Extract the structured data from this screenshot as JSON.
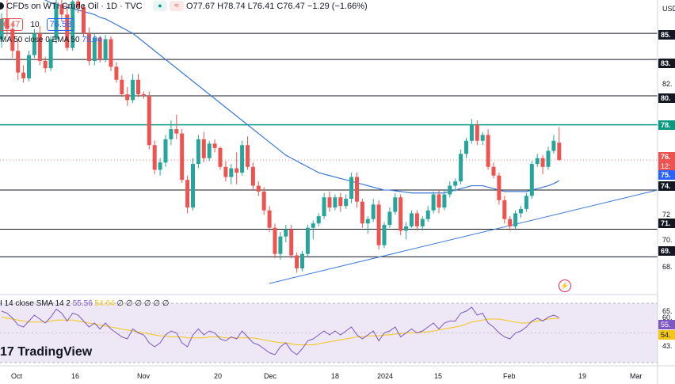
{
  "header": {
    "symbol_title": "CFDs on WTI Crude Oil · 1D · TVC",
    "ohlc": "O77.67 H78.74 L76.41 C76.47 −1.29 (−1.66%)",
    "bid": "6.47",
    "spread": "10",
    "ask": "76.58",
    "ema_label": "MA 50 close 0 EMA 50",
    "ema_value": "75.04",
    "currency": "USD"
  },
  "rsi_panel": {
    "label": "I 14 close SMA 14 2",
    "rsi_value": "55.56",
    "sma_value": "54.64",
    "trailing": "∅ ∅ ∅ ∅ ∅ ∅",
    "axis_labels": [
      "65.",
      "60.",
      "55.",
      "54.",
      "43."
    ]
  },
  "price_axis": {
    "ticks": [
      "85.",
      "83.",
      "82.",
      "80.",
      "78.",
      "76.",
      "75.",
      "74.",
      "72",
      "71.",
      "70.",
      "69.",
      "68."
    ],
    "highlighted": [
      "85.",
      "83.",
      "80.",
      "78.",
      "76.",
      "12:",
      "75.",
      "74.",
      "71.",
      "69."
    ]
  },
  "date_axis": [
    "Oct",
    "16",
    "Nov",
    "20",
    "Dec",
    "18",
    "2024",
    "15",
    "Feb",
    "19",
    "Mar"
  ],
  "logo": "TradingView",
  "colors": {
    "up": "#26a69a",
    "down": "#ef5350",
    "ema": "#3b78d8",
    "rsi": "#7e57c2",
    "rsi_sma": "#f5c518",
    "rsi_bg": "#ede7f6",
    "resistance": "#131722",
    "highlight_line": "#089981"
  },
  "chart_data": {
    "type": "candlestick",
    "title": "CFDs on WTI Crude Oil · 1D · TVC",
    "ylim": [
      67.2,
      87.5
    ],
    "horizontal_levels": [
      85.2,
      83.4,
      80.9,
      78.9,
      74.4,
      71.7,
      69.8
    ],
    "trendline": [
      {
        "x": 0,
        "y": 67.8
      },
      {
        "x": 107,
        "y": 74.8
      }
    ],
    "candles": [
      {
        "o": 84.8,
        "h": 86.6,
        "l": 84.2,
        "c": 86.2
      },
      {
        "o": 86.2,
        "h": 87.5,
        "l": 85.0,
        "c": 85.5
      },
      {
        "o": 85.5,
        "h": 86.0,
        "l": 83.5,
        "c": 84.0
      },
      {
        "o": 84.0,
        "h": 84.8,
        "l": 82.0,
        "c": 82.5
      },
      {
        "o": 82.5,
        "h": 83.0,
        "l": 81.8,
        "c": 82.1
      },
      {
        "o": 82.1,
        "h": 84.0,
        "l": 81.9,
        "c": 83.7
      },
      {
        "o": 83.7,
        "h": 85.5,
        "l": 83.5,
        "c": 85.2
      },
      {
        "o": 85.2,
        "h": 85.7,
        "l": 83.0,
        "c": 83.3
      },
      {
        "o": 83.3,
        "h": 83.6,
        "l": 82.5,
        "c": 82.8
      },
      {
        "o": 82.8,
        "h": 85.0,
        "l": 82.6,
        "c": 84.8
      },
      {
        "o": 84.8,
        "h": 87.5,
        "l": 84.5,
        "c": 87.2
      },
      {
        "o": 87.2,
        "h": 87.5,
        "l": 86.0,
        "c": 86.5
      },
      {
        "o": 86.5,
        "h": 87.2,
        "l": 84.0,
        "c": 84.2
      },
      {
        "o": 84.2,
        "h": 87.6,
        "l": 84.0,
        "c": 87.4
      },
      {
        "o": 87.4,
        "h": 87.6,
        "l": 86.6,
        "c": 87.0
      },
      {
        "o": 87.0,
        "h": 87.2,
        "l": 85.0,
        "c": 85.2
      },
      {
        "o": 85.2,
        "h": 85.6,
        "l": 83.0,
        "c": 83.3
      },
      {
        "o": 83.3,
        "h": 85.2,
        "l": 83.0,
        "c": 84.9
      },
      {
        "o": 84.9,
        "h": 85.0,
        "l": 83.2,
        "c": 83.4
      },
      {
        "o": 83.4,
        "h": 85.1,
        "l": 83.2,
        "c": 84.8
      },
      {
        "o": 84.8,
        "h": 85.0,
        "l": 82.6,
        "c": 82.9
      },
      {
        "o": 82.9,
        "h": 83.2,
        "l": 81.8,
        "c": 82.0
      },
      {
        "o": 82.0,
        "h": 82.3,
        "l": 80.8,
        "c": 81.0
      },
      {
        "o": 81.0,
        "h": 81.5,
        "l": 80.2,
        "c": 80.6
      },
      {
        "o": 80.6,
        "h": 82.4,
        "l": 80.4,
        "c": 82.0
      },
      {
        "o": 82.0,
        "h": 82.4,
        "l": 80.8,
        "c": 81.0
      },
      {
        "o": 81.0,
        "h": 81.2,
        "l": 80.7,
        "c": 80.9
      },
      {
        "o": 80.9,
        "h": 81.2,
        "l": 77.2,
        "c": 77.5
      },
      {
        "o": 77.5,
        "h": 77.8,
        "l": 75.5,
        "c": 75.8
      },
      {
        "o": 75.8,
        "h": 76.6,
        "l": 75.4,
        "c": 76.3
      },
      {
        "o": 76.3,
        "h": 78.2,
        "l": 76.0,
        "c": 77.9
      },
      {
        "o": 77.9,
        "h": 79.2,
        "l": 77.5,
        "c": 78.6
      },
      {
        "o": 78.6,
        "h": 79.6,
        "l": 77.9,
        "c": 78.3
      },
      {
        "o": 78.3,
        "h": 78.6,
        "l": 74.9,
        "c": 75.1
      },
      {
        "o": 75.1,
        "h": 75.4,
        "l": 72.8,
        "c": 73.2
      },
      {
        "o": 73.2,
        "h": 76.6,
        "l": 73.0,
        "c": 76.2
      },
      {
        "o": 76.2,
        "h": 78.2,
        "l": 75.9,
        "c": 77.9
      },
      {
        "o": 77.9,
        "h": 78.4,
        "l": 76.3,
        "c": 76.6
      },
      {
        "o": 76.6,
        "h": 77.8,
        "l": 76.4,
        "c": 77.6
      },
      {
        "o": 77.6,
        "h": 77.9,
        "l": 77.0,
        "c": 77.3
      },
      {
        "o": 77.3,
        "h": 77.4,
        "l": 75.8,
        "c": 76.0
      },
      {
        "o": 76.0,
        "h": 76.4,
        "l": 75.0,
        "c": 75.3
      },
      {
        "o": 75.3,
        "h": 76.2,
        "l": 74.8,
        "c": 75.9
      },
      {
        "o": 75.9,
        "h": 77.0,
        "l": 74.8,
        "c": 75.6
      },
      {
        "o": 75.6,
        "h": 77.8,
        "l": 75.4,
        "c": 77.5
      },
      {
        "o": 77.5,
        "h": 78.1,
        "l": 75.8,
        "c": 76.0
      },
      {
        "o": 76.0,
        "h": 76.3,
        "l": 74.4,
        "c": 74.7
      },
      {
        "o": 74.7,
        "h": 75.0,
        "l": 74.0,
        "c": 74.3
      },
      {
        "o": 74.3,
        "h": 74.6,
        "l": 72.7,
        "c": 73.0
      },
      {
        "o": 73.0,
        "h": 73.3,
        "l": 71.5,
        "c": 71.8
      },
      {
        "o": 71.8,
        "h": 72.1,
        "l": 69.7,
        "c": 70.0
      },
      {
        "o": 70.0,
        "h": 71.5,
        "l": 69.6,
        "c": 71.2
      },
      {
        "o": 71.2,
        "h": 72.0,
        "l": 70.8,
        "c": 71.7
      },
      {
        "o": 71.7,
        "h": 72.0,
        "l": 69.7,
        "c": 69.9
      },
      {
        "o": 69.9,
        "h": 70.1,
        "l": 68.7,
        "c": 69.0
      },
      {
        "o": 69.0,
        "h": 70.2,
        "l": 68.8,
        "c": 70.0
      },
      {
        "o": 70.0,
        "h": 72.0,
        "l": 69.8,
        "c": 71.8
      },
      {
        "o": 71.8,
        "h": 72.3,
        "l": 71.0,
        "c": 72.1
      },
      {
        "o": 72.1,
        "h": 72.8,
        "l": 71.9,
        "c": 72.6
      },
      {
        "o": 72.6,
        "h": 74.2,
        "l": 72.4,
        "c": 73.9
      },
      {
        "o": 73.9,
        "h": 74.3,
        "l": 72.9,
        "c": 73.2
      },
      {
        "o": 73.2,
        "h": 74.1,
        "l": 73.0,
        "c": 73.9
      },
      {
        "o": 73.9,
        "h": 74.2,
        "l": 72.9,
        "c": 73.3
      },
      {
        "o": 73.3,
        "h": 74.1,
        "l": 73.1,
        "c": 73.8
      },
      {
        "o": 73.8,
        "h": 75.6,
        "l": 73.5,
        "c": 75.3
      },
      {
        "o": 75.3,
        "h": 75.6,
        "l": 73.2,
        "c": 73.6
      },
      {
        "o": 73.6,
        "h": 73.8,
        "l": 71.8,
        "c": 72.1
      },
      {
        "o": 72.1,
        "h": 72.6,
        "l": 71.4,
        "c": 72.4
      },
      {
        "o": 72.4,
        "h": 73.8,
        "l": 72.2,
        "c": 73.4
      },
      {
        "o": 73.4,
        "h": 73.7,
        "l": 70.3,
        "c": 70.6
      },
      {
        "o": 70.6,
        "h": 72.2,
        "l": 70.4,
        "c": 72.0
      },
      {
        "o": 72.0,
        "h": 73.2,
        "l": 71.8,
        "c": 72.9
      },
      {
        "o": 72.9,
        "h": 74.2,
        "l": 72.7,
        "c": 73.9
      },
      {
        "o": 73.9,
        "h": 74.1,
        "l": 71.3,
        "c": 71.6
      },
      {
        "o": 71.6,
        "h": 72.2,
        "l": 71.0,
        "c": 71.9
      },
      {
        "o": 71.9,
        "h": 73.0,
        "l": 71.8,
        "c": 72.8
      },
      {
        "o": 72.8,
        "h": 73.0,
        "l": 71.6,
        "c": 71.9
      },
      {
        "o": 71.9,
        "h": 72.6,
        "l": 71.6,
        "c": 72.4
      },
      {
        "o": 72.4,
        "h": 73.3,
        "l": 72.2,
        "c": 73.0
      },
      {
        "o": 73.0,
        "h": 74.3,
        "l": 72.8,
        "c": 74.1
      },
      {
        "o": 74.1,
        "h": 74.4,
        "l": 72.8,
        "c": 73.2
      },
      {
        "o": 73.2,
        "h": 74.4,
        "l": 73.0,
        "c": 74.1
      },
      {
        "o": 74.1,
        "h": 75.0,
        "l": 73.9,
        "c": 74.7
      },
      {
        "o": 74.7,
        "h": 75.2,
        "l": 74.3,
        "c": 75.0
      },
      {
        "o": 75.0,
        "h": 77.2,
        "l": 74.8,
        "c": 76.9
      },
      {
        "o": 76.9,
        "h": 78.0,
        "l": 76.6,
        "c": 77.8
      },
      {
        "o": 77.8,
        "h": 79.3,
        "l": 77.6,
        "c": 78.9
      },
      {
        "o": 78.9,
        "h": 79.2,
        "l": 77.5,
        "c": 77.8
      },
      {
        "o": 77.8,
        "h": 78.4,
        "l": 77.5,
        "c": 78.2
      },
      {
        "o": 78.2,
        "h": 78.6,
        "l": 75.8,
        "c": 76.0
      },
      {
        "o": 76.0,
        "h": 76.3,
        "l": 75.2,
        "c": 75.4
      },
      {
        "o": 75.4,
        "h": 75.6,
        "l": 73.4,
        "c": 73.7
      },
      {
        "o": 73.7,
        "h": 74.0,
        "l": 72.1,
        "c": 72.4
      },
      {
        "o": 72.4,
        "h": 72.6,
        "l": 71.6,
        "c": 71.9
      },
      {
        "o": 71.9,
        "h": 73.0,
        "l": 71.7,
        "c": 72.8
      },
      {
        "o": 72.8,
        "h": 73.3,
        "l": 72.5,
        "c": 73.1
      },
      {
        "o": 73.1,
        "h": 74.2,
        "l": 72.9,
        "c": 74.0
      },
      {
        "o": 74.0,
        "h": 76.4,
        "l": 73.8,
        "c": 76.2
      },
      {
        "o": 76.2,
        "h": 76.9,
        "l": 76.0,
        "c": 76.6
      },
      {
        "o": 76.6,
        "h": 76.8,
        "l": 75.5,
        "c": 76.0
      },
      {
        "o": 76.0,
        "h": 77.4,
        "l": 75.8,
        "c": 77.1
      },
      {
        "o": 77.1,
        "h": 78.2,
        "l": 76.9,
        "c": 77.8
      },
      {
        "o": 77.67,
        "h": 78.74,
        "l": 76.41,
        "c": 76.47
      }
    ],
    "rsi": [
      62,
      60,
      55,
      48,
      46,
      52,
      58,
      54,
      50,
      56,
      64,
      60,
      52,
      60,
      58,
      52,
      46,
      50,
      44,
      50,
      44,
      40,
      36,
      34,
      44,
      40,
      38,
      30,
      26,
      30,
      38,
      42,
      40,
      30,
      26,
      38,
      44,
      38,
      42,
      40,
      34,
      32,
      36,
      34,
      42,
      36,
      30,
      28,
      24,
      20,
      18,
      26,
      30,
      22,
      18,
      24,
      32,
      34,
      38,
      42,
      38,
      42,
      38,
      42,
      46,
      38,
      34,
      38,
      42,
      32,
      40,
      42,
      46,
      36,
      40,
      44,
      40,
      42,
      46,
      50,
      44,
      50,
      52,
      52,
      60,
      62,
      66,
      58,
      60,
      50,
      46,
      40,
      36,
      34,
      40,
      42,
      46,
      52,
      55,
      52,
      56,
      58,
      55.56
    ],
    "rsi_sma": [
      56,
      55,
      54,
      53,
      52,
      51,
      51,
      51,
      51,
      52,
      53,
      53,
      53,
      53,
      52,
      51,
      50,
      49,
      48,
      47,
      46,
      45,
      44,
      43,
      42,
      41,
      40,
      39,
      38,
      37,
      37,
      36,
      36,
      36,
      35,
      35,
      35,
      35,
      36,
      36,
      36,
      35,
      35,
      35,
      35,
      35,
      35,
      34,
      33,
      32,
      31,
      30,
      30,
      29,
      28,
      28,
      28,
      28,
      29,
      30,
      31,
      32,
      33,
      34,
      35,
      36,
      36,
      37,
      37,
      37,
      38,
      38,
      39,
      39,
      40,
      40,
      40,
      41,
      41,
      42,
      43,
      44,
      45,
      46,
      47,
      49,
      51,
      52,
      53,
      54,
      54,
      54,
      53,
      52,
      51,
      50,
      50,
      51,
      52,
      53,
      54,
      54.64,
      54.64
    ],
    "ema": [
      89.0,
      88.9,
      88.7,
      88.5,
      88.3,
      88.1,
      87.9,
      87.7,
      87.5,
      87.3,
      87.2,
      87.1,
      87.0,
      86.9,
      86.8,
      86.7,
      86.6,
      86.5,
      86.3,
      86.2,
      86.0,
      85.8,
      85.6,
      85.4,
      85.2,
      84.9,
      84.6,
      84.3,
      84.0,
      83.7,
      83.4,
      83.1,
      82.8,
      82.5,
      82.2,
      81.9,
      81.6,
      81.3,
      81.0,
      80.7,
      80.4,
      80.1,
      79.8,
      79.5,
      79.2,
      78.9,
      78.6,
      78.3,
      78.0,
      77.7,
      77.4,
      77.1,
      76.8,
      76.6,
      76.4,
      76.2,
      76.0,
      75.8,
      75.6,
      75.5,
      75.4,
      75.3,
      75.2,
      75.1,
      75.0,
      74.9,
      74.8,
      74.7,
      74.6,
      74.5,
      74.4,
      74.4,
      74.35,
      74.3,
      74.25,
      74.2,
      74.2,
      74.2,
      74.2,
      74.2,
      74.2,
      74.2,
      74.3,
      74.4,
      74.5,
      74.6,
      74.7,
      74.7,
      74.7,
      74.6,
      74.5,
      74.4,
      74.3,
      74.3,
      74.3,
      74.3,
      74.3,
      74.4,
      74.5,
      74.6,
      74.7,
      74.85,
      75.04
    ]
  }
}
